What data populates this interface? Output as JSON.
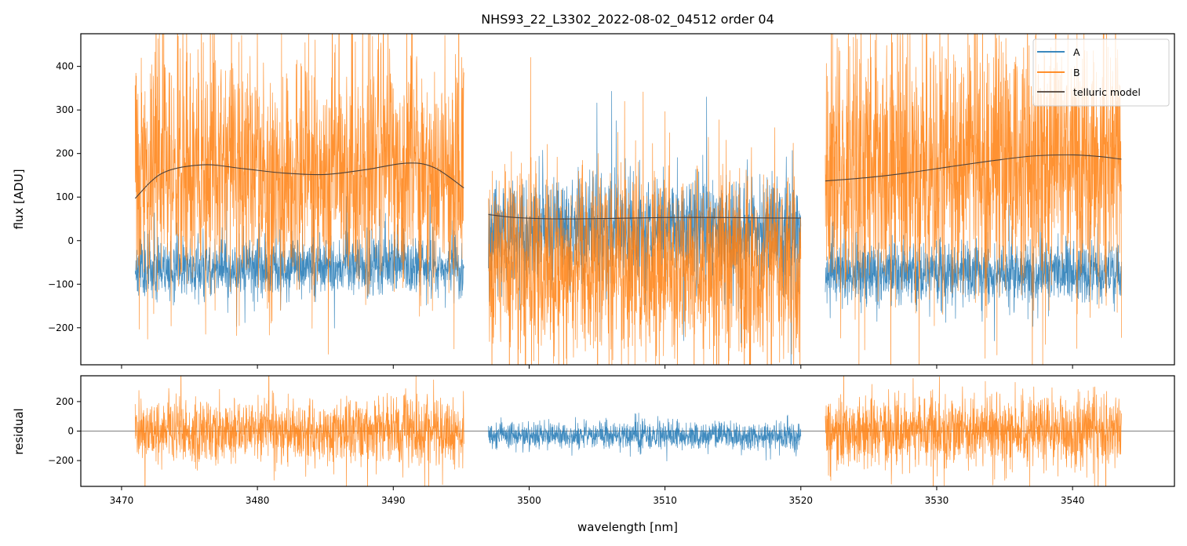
{
  "chart_data": {
    "type": "line",
    "title": "NHS93_22_L3302_2022-08-02_04512  order 04",
    "xlabel": "wavelength [nm]",
    "xlim": [
      3467,
      3547.5
    ],
    "x_ticks": [
      3470,
      3480,
      3490,
      3500,
      3510,
      3520,
      3530,
      3540
    ],
    "x_tick_labels": [
      "3470",
      "3480",
      "3490",
      "3500",
      "3510",
      "3520",
      "3530",
      "3540"
    ],
    "colors": {
      "A": "#1f77b4",
      "B": "#ff7f0e",
      "model": "#4d4038",
      "zero": "#555555"
    },
    "segments": [
      {
        "x0": 3471.0,
        "x1": 3495.2
      },
      {
        "x0": 3497.0,
        "x1": 3520.0
      },
      {
        "x0": 3521.8,
        "x1": 3543.6
      }
    ],
    "panels": [
      {
        "name": "flux",
        "ylabel": "flux [ADU]",
        "ylim": [
          -285,
          475
        ],
        "y_ticks": [
          -200,
          -100,
          0,
          100,
          200,
          300,
          400
        ],
        "y_tick_labels": [
          "−200",
          "−100",
          "0",
          "100",
          "200",
          "300",
          "400"
        ],
        "legend": {
          "location": "upper right",
          "entries": [
            {
              "label": "A",
              "color": "#1f77b4"
            },
            {
              "label": "B",
              "color": "#ff7f0e"
            },
            {
              "label": "telluric model",
              "color": "#4d4038"
            }
          ]
        },
        "series": [
          {
            "name": "A",
            "color": "#1f77b4",
            "noise": {
              "seed": 11,
              "points_per_segment": 1400
            },
            "segments": [
              {
                "x0": 3471.0,
                "x1": 3495.2,
                "mean": -60,
                "sigma": 35
              },
              {
                "x0": 3497.0,
                "x1": 3520.0,
                "mean": 25,
                "sigma": 60
              },
              {
                "x0": 3521.8,
                "x1": 3543.6,
                "mean": -75,
                "sigma": 35
              }
            ]
          },
          {
            "name": "B",
            "color": "#ff7f0e",
            "noise": {
              "seed": 29,
              "points_per_segment": 1400
            },
            "segments": [
              {
                "x0": 3471.0,
                "x1": 3495.2,
                "mean": 160,
                "sigma": 140
              },
              {
                "x0": 3497.0,
                "x1": 3520.0,
                "mean": -60,
                "sigma": 110
              },
              {
                "x0": 3521.8,
                "x1": 3543.6,
                "mean": 170,
                "sigma": 150
              }
            ]
          },
          {
            "name": "telluric model",
            "color": "#4d4038",
            "segments": [
              {
                "x": [
                  3471,
                  3473,
                  3476,
                  3479,
                  3482,
                  3485,
                  3488,
                  3491,
                  3493,
                  3495.2
                ],
                "y": [
                  97,
                  155,
                  174,
                  165,
                  155,
                  152,
                  163,
                  178,
                  168,
                  121
                ]
              },
              {
                "x": [
                  3497,
                  3499,
                  3502,
                  3506,
                  3510,
                  3514,
                  3518,
                  3520
                ],
                "y": [
                  60,
                  53,
                  50,
                  51,
                  53,
                  53,
                  52,
                  52
                ]
              },
              {
                "x": [
                  3521.8,
                  3525,
                  3528,
                  3531,
                  3534,
                  3537,
                  3540,
                  3542,
                  3543.6
                ],
                "y": [
                  137,
                  145,
                  156,
                  170,
                  183,
                  194,
                  197,
                  193,
                  187
                ]
              }
            ]
          }
        ]
      },
      {
        "name": "residual",
        "ylabel": "residual",
        "ylim": [
          -375,
          375
        ],
        "y_ticks": [
          -200,
          0,
          200
        ],
        "y_tick_labels": [
          "−200",
          "0",
          "200"
        ],
        "zero_line": 0,
        "series": [
          {
            "name": "B",
            "color": "#ff7f0e",
            "noise": {
              "seed": 41,
              "points_per_segment": 1400
            },
            "segments": [
              {
                "x0": 3471.0,
                "x1": 3495.2,
                "mean": 0,
                "sigma": 110
              },
              {
                "x0": 3521.8,
                "x1": 3543.6,
                "mean": 0,
                "sigma": 120
              }
            ]
          },
          {
            "name": "A",
            "color": "#1f77b4",
            "noise": {
              "seed": 53,
              "points_per_segment": 1400
            },
            "segments": [
              {
                "x0": 3497.0,
                "x1": 3520.0,
                "mean": -30,
                "sigma": 45
              }
            ]
          }
        ]
      }
    ]
  }
}
